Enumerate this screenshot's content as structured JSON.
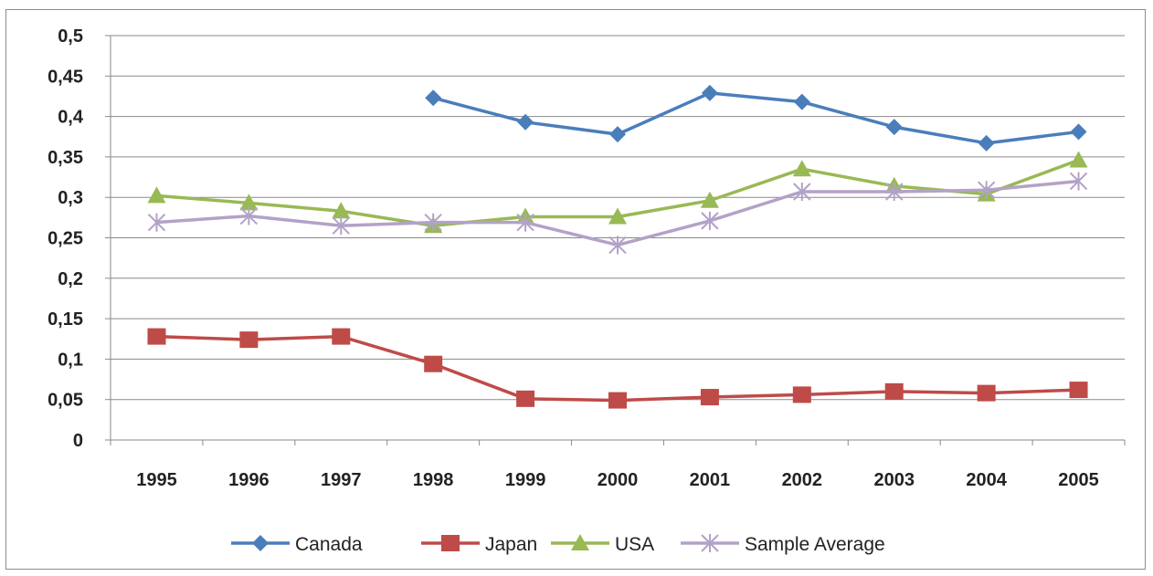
{
  "chart_data": {
    "type": "line",
    "title": "",
    "xlabel": "",
    "ylabel": "",
    "categories": [
      "1995",
      "1996",
      "1997",
      "1998",
      "1999",
      "2000",
      "2001",
      "2002",
      "2003",
      "2004",
      "2005"
    ],
    "ylim": [
      0,
      0.5
    ],
    "yticks": [
      "0",
      "0,05",
      "0,1",
      "0,15",
      "0,2",
      "0,25",
      "0,3",
      "0,35",
      "0,4",
      "0,45",
      "0,5"
    ],
    "ytick_values": [
      0,
      0.05,
      0.1,
      0.15,
      0.2,
      0.25,
      0.3,
      0.35,
      0.4,
      0.45,
      0.5
    ],
    "grid": true,
    "legend_position": "bottom",
    "series": [
      {
        "name": "Canada",
        "color": "#4a7ebb",
        "marker": "diamond",
        "values": [
          null,
          null,
          null,
          0.423,
          0.393,
          0.378,
          0.429,
          0.418,
          0.387,
          0.367,
          0.381
        ]
      },
      {
        "name": "Japan",
        "color": "#be4b48",
        "marker": "square",
        "values": [
          0.128,
          0.124,
          0.128,
          0.094,
          0.051,
          0.049,
          0.053,
          0.056,
          0.06,
          0.058,
          0.062
        ]
      },
      {
        "name": "USA",
        "color": "#98b954",
        "marker": "triangle",
        "values": [
          0.302,
          0.293,
          0.283,
          0.265,
          0.276,
          0.276,
          0.296,
          0.335,
          0.314,
          0.304,
          0.346
        ]
      },
      {
        "name": "Sample Average",
        "color": "#b3a2c7",
        "marker": "asterisk",
        "values": [
          0.269,
          0.277,
          0.265,
          0.269,
          0.269,
          0.241,
          0.271,
          0.307,
          0.307,
          0.309,
          0.32
        ]
      }
    ]
  }
}
